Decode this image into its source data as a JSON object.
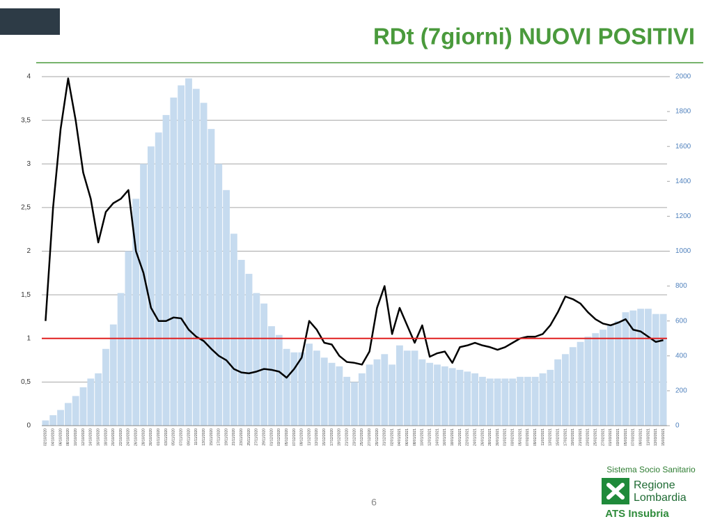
{
  "chart_data": {
    "type": "combo",
    "title": "RDt (7giorni) NUOVI POSITIVI",
    "categories": [
      "02/10/2020",
      "04/10/2020",
      "06/10/2020",
      "08/10/2020",
      "10/10/2020",
      "12/10/2020",
      "14/10/2020",
      "16/10/2020",
      "18/10/2020",
      "20/10/2020",
      "22/10/2020",
      "24/10/2020",
      "26/10/2020",
      "28/10/2020",
      "30/10/2020",
      "01/11/2020",
      "03/11/2020",
      "05/11/2020",
      "07/11/2020",
      "09/11/2020",
      "11/11/2020",
      "13/11/2020",
      "15/11/2020",
      "17/11/2020",
      "19/11/2020",
      "21/11/2020",
      "23/11/2020",
      "25/11/2020",
      "27/11/2020",
      "29/11/2020",
      "01/12/2020",
      "03/12/2020",
      "05/12/2020",
      "07/12/2020",
      "09/12/2020",
      "11/12/2020",
      "13/12/2020",
      "15/12/2020",
      "17/12/2020",
      "19/12/2020",
      "21/12/2020",
      "23/12/2020",
      "25/12/2020",
      "27/12/2020",
      "29/12/2020",
      "31/12/2020",
      "02/01/2021",
      "04/01/2021",
      "06/01/2021",
      "08/01/2021",
      "10/01/2021",
      "12/01/2021",
      "14/01/2021",
      "16/01/2021",
      "18/01/2021",
      "20/01/2021",
      "22/01/2021",
      "24/01/2021",
      "26/01/2021",
      "28/01/2021",
      "30/01/2021",
      "01/02/2021",
      "03/02/2021",
      "05/02/2021",
      "07/02/2021",
      "09/02/2021",
      "11/02/2021",
      "13/02/2021",
      "15/02/2021",
      "17/02/2021",
      "19/02/2021",
      "21/02/2021",
      "23/02/2021",
      "25/02/2021",
      "27/02/2021",
      "01/03/2021",
      "03/03/2021",
      "05/03/2021",
      "07/03/2021",
      "09/03/2021",
      "11/03/2021",
      "13/03/2021",
      "15/03/2021"
    ],
    "series": [
      {
        "type": "bar",
        "axis": "y2",
        "color": "#c6dbef",
        "values": [
          30,
          60,
          90,
          130,
          170,
          220,
          270,
          300,
          440,
          580,
          760,
          1000,
          1300,
          1500,
          1600,
          1680,
          1780,
          1880,
          1950,
          1990,
          1930,
          1850,
          1700,
          1500,
          1350,
          1100,
          950,
          870,
          760,
          700,
          570,
          520,
          440,
          420,
          420,
          470,
          430,
          390,
          360,
          340,
          280,
          250,
          300,
          350,
          380,
          410,
          350,
          460,
          430,
          430,
          380,
          360,
          350,
          340,
          330,
          320,
          310,
          300,
          280,
          270,
          270,
          270,
          270,
          280,
          280,
          280,
          300,
          320,
          380,
          410,
          450,
          480,
          510,
          530,
          550,
          580,
          600,
          650,
          660,
          670,
          670,
          640,
          640
        ]
      },
      {
        "type": "line",
        "axis": "y",
        "color": "#000000",
        "values": [
          1.2,
          2.5,
          3.4,
          3.98,
          3.5,
          2.9,
          2.6,
          2.1,
          2.45,
          2.55,
          2.6,
          2.7,
          2.0,
          1.75,
          1.35,
          1.2,
          1.2,
          1.24,
          1.23,
          1.1,
          1.02,
          0.97,
          0.88,
          0.8,
          0.75,
          0.65,
          0.61,
          0.6,
          0.62,
          0.65,
          0.64,
          0.62,
          0.55,
          0.65,
          0.78,
          1.2,
          1.1,
          0.95,
          0.93,
          0.8,
          0.73,
          0.72,
          0.7,
          0.85,
          1.35,
          1.6,
          1.05,
          1.35,
          1.15,
          0.95,
          1.15,
          0.79,
          0.83,
          0.85,
          0.72,
          0.9,
          0.92,
          0.95,
          0.92,
          0.9,
          0.87,
          0.9,
          0.95,
          1.0,
          1.02,
          1.02,
          1.05,
          1.15,
          1.3,
          1.48,
          1.45,
          1.4,
          1.3,
          1.22,
          1.17,
          1.15,
          1.18,
          1.22,
          1.1,
          1.08,
          1.02,
          0.96,
          0.98
        ]
      }
    ],
    "ylim": [
      0,
      4
    ],
    "yticks": [
      0,
      {
        "value": 0.5,
        "label": "0,5"
      },
      1,
      {
        "value": 1.5,
        "label": "1,5"
      },
      2,
      {
        "value": 2.5,
        "label": "2,5"
      },
      3,
      {
        "value": 3.5,
        "label": "3,5"
      },
      4
    ],
    "y2lim": [
      0,
      2000
    ],
    "y2ticks": [
      0,
      200,
      400,
      600,
      800,
      1000,
      1200,
      1400,
      1600,
      1800,
      2000
    ],
    "threshold": 1,
    "threshold_color": "#e02020",
    "grid": true
  },
  "page_number": "6",
  "logo": {
    "system": "Sistema Socio Sanitario",
    "region_line1": "Regione",
    "region_line2": "Lombardia",
    "agency": "ATS Insubria"
  }
}
